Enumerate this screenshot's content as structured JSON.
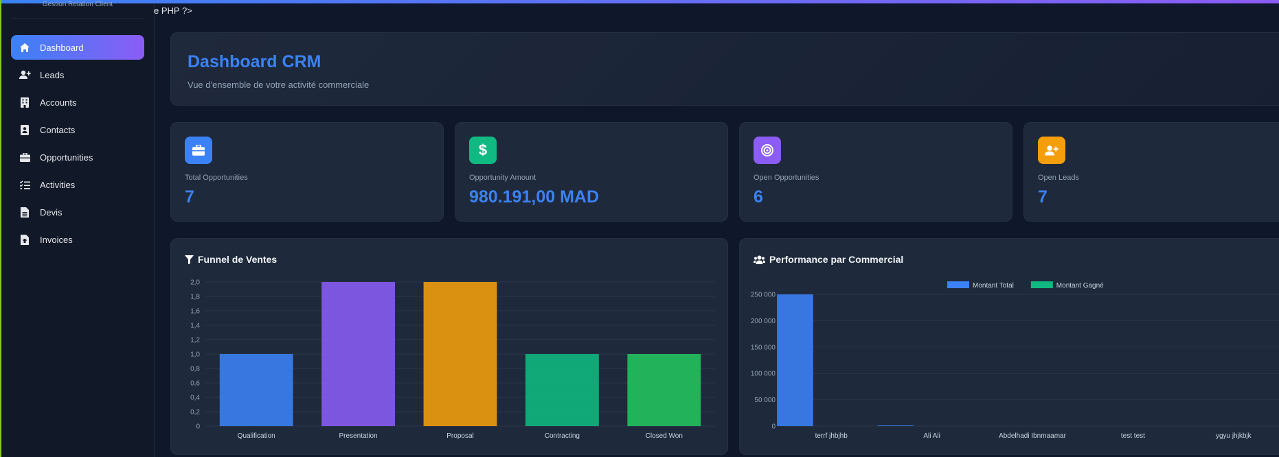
{
  "header": {
    "php_fragment": "e PHP ?>"
  },
  "sidebar": {
    "brand_subtitle": "Gestion Relation Client",
    "items": [
      {
        "label": "Dashboard",
        "icon": "home-icon",
        "active": true
      },
      {
        "label": "Leads",
        "icon": "user-plus-icon"
      },
      {
        "label": "Accounts",
        "icon": "building-icon"
      },
      {
        "label": "Contacts",
        "icon": "address-book-icon"
      },
      {
        "label": "Opportunities",
        "icon": "briefcase-icon"
      },
      {
        "label": "Activities",
        "icon": "tasks-icon"
      },
      {
        "label": "Devis",
        "icon": "file-icon"
      },
      {
        "label": "Invoices",
        "icon": "invoice-icon"
      }
    ]
  },
  "hero": {
    "title": "Dashboard CRM",
    "subtitle": "Vue d'ensemble de votre activité commerciale"
  },
  "stats": [
    {
      "label": "Total Opportunities",
      "value": "7",
      "color": "#3b82f6",
      "icon": "briefcase-icon"
    },
    {
      "label": "Opportunity Amount",
      "value": "980.191,00 MAD",
      "color": "#10b981",
      "icon": "dollar-icon"
    },
    {
      "label": "Open Opportunities",
      "value": "6",
      "color": "#8b5cf6",
      "icon": "target-icon"
    },
    {
      "label": "Open Leads",
      "value": "7",
      "color": "#f59e0b",
      "icon": "user-plus-icon"
    }
  ],
  "funnel": {
    "title": "Funnel de Ventes",
    "icon": "filter-icon",
    "chart_data": {
      "type": "bar",
      "categories": [
        "Qualification",
        "Presentation",
        "Proposal",
        "Contracting",
        "Closed Won"
      ],
      "values": [
        1,
        2,
        2,
        1,
        1
      ],
      "colors": [
        "#3b82f6",
        "#8b5cf6",
        "#f59e0b",
        "#10b981",
        "#22c55e"
      ],
      "ylim": [
        0,
        2
      ],
      "yticks": [
        "0",
        "0,2",
        "0,4",
        "0,6",
        "0,8",
        "1,0",
        "1,2",
        "1,4",
        "1,6",
        "1,8",
        "2,0"
      ],
      "grid": true
    }
  },
  "performance": {
    "title": "Performance par Commercial",
    "icon": "users-icon",
    "chart_data": {
      "type": "bar",
      "categories": [
        "terrf jhbjhb",
        "Ali Ali",
        "Abdelhadi Ibnmaamar",
        "test test",
        "ygyu jhjkbjk"
      ],
      "series": [
        {
          "name": "Montant Total",
          "values": [
            250000,
            1000,
            0,
            0,
            0
          ],
          "color": "#3b82f6"
        },
        {
          "name": "Montant Gagné",
          "values": [
            0,
            0,
            0,
            0,
            0
          ],
          "color": "#10b981"
        }
      ],
      "ylim": [
        0,
        250000
      ],
      "yticks": [
        "0",
        "50 000",
        "100 000",
        "150 000",
        "200 000",
        "250 000"
      ],
      "legend": "top",
      "grid": true
    }
  }
}
